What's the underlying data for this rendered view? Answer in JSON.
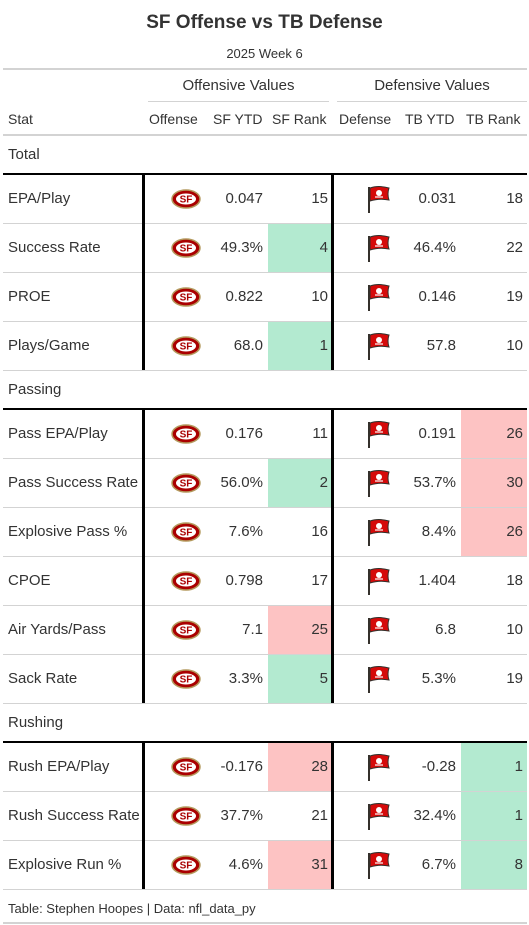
{
  "title": "SF Offense vs TB Defense",
  "subtitle": "2025 Week 6",
  "spanners": {
    "offensive": "Offensive Values",
    "defensive": "Defensive Values"
  },
  "columns": {
    "stat": "Stat",
    "offense": "Offense",
    "sf_ytd": "SF YTD",
    "sf_rank": "SF Rank",
    "defense": "Defense",
    "tb_ytd": "TB YTD",
    "tb_rank": "TB Rank"
  },
  "colors": {
    "good": "#b3ead0",
    "bad": "#fdc3c3",
    "niners_red": "#aa0000",
    "niners_gold": "#b3995d",
    "bucs_red": "#d50a0a",
    "bucs_pewter": "#34302b"
  },
  "groups": [
    {
      "label": "Total",
      "rows": [
        {
          "stat": "EPA/Play",
          "sf_ytd": "0.047",
          "sf_rank": "15",
          "sf_rank_tone": "none",
          "tb_ytd": "0.031",
          "tb_rank": "18",
          "tb_rank_tone": "none"
        },
        {
          "stat": "Success Rate",
          "sf_ytd": "49.3%",
          "sf_rank": "4",
          "sf_rank_tone": "good",
          "tb_ytd": "46.4%",
          "tb_rank": "22",
          "tb_rank_tone": "none"
        },
        {
          "stat": "PROE",
          "sf_ytd": "0.822",
          "sf_rank": "10",
          "sf_rank_tone": "none",
          "tb_ytd": "0.146",
          "tb_rank": "19",
          "tb_rank_tone": "none"
        },
        {
          "stat": "Plays/Game",
          "sf_ytd": "68.0",
          "sf_rank": "1",
          "sf_rank_tone": "good",
          "tb_ytd": "57.8",
          "tb_rank": "10",
          "tb_rank_tone": "none"
        }
      ]
    },
    {
      "label": "Passing",
      "rows": [
        {
          "stat": "Pass EPA/Play",
          "sf_ytd": "0.176",
          "sf_rank": "11",
          "sf_rank_tone": "none",
          "tb_ytd": "0.191",
          "tb_rank": "26",
          "tb_rank_tone": "bad"
        },
        {
          "stat": "Pass Success Rate",
          "sf_ytd": "56.0%",
          "sf_rank": "2",
          "sf_rank_tone": "good",
          "tb_ytd": "53.7%",
          "tb_rank": "30",
          "tb_rank_tone": "bad"
        },
        {
          "stat": "Explosive Pass %",
          "sf_ytd": "7.6%",
          "sf_rank": "16",
          "sf_rank_tone": "none",
          "tb_ytd": "8.4%",
          "tb_rank": "26",
          "tb_rank_tone": "bad"
        },
        {
          "stat": "CPOE",
          "sf_ytd": "0.798",
          "sf_rank": "17",
          "sf_rank_tone": "none",
          "tb_ytd": "1.404",
          "tb_rank": "18",
          "tb_rank_tone": "none"
        },
        {
          "stat": "Air Yards/Pass",
          "sf_ytd": "7.1",
          "sf_rank": "25",
          "sf_rank_tone": "bad",
          "tb_ytd": "6.8",
          "tb_rank": "10",
          "tb_rank_tone": "none"
        },
        {
          "stat": "Sack Rate",
          "sf_ytd": "3.3%",
          "sf_rank": "5",
          "sf_rank_tone": "good",
          "tb_ytd": "5.3%",
          "tb_rank": "19",
          "tb_rank_tone": "none"
        }
      ]
    },
    {
      "label": "Rushing",
      "rows": [
        {
          "stat": "Rush EPA/Play",
          "sf_ytd": "-0.176",
          "sf_rank": "28",
          "sf_rank_tone": "bad",
          "tb_ytd": "-0.28",
          "tb_rank": "1",
          "tb_rank_tone": "good"
        },
        {
          "stat": "Rush Success Rate",
          "sf_ytd": "37.7%",
          "sf_rank": "21",
          "sf_rank_tone": "none",
          "tb_ytd": "32.4%",
          "tb_rank": "1",
          "tb_rank_tone": "good"
        },
        {
          "stat": "Explosive Run %",
          "sf_ytd": "4.6%",
          "sf_rank": "31",
          "sf_rank_tone": "bad",
          "tb_ytd": "6.7%",
          "tb_rank": "8",
          "tb_rank_tone": "good"
        }
      ]
    }
  ],
  "offense_logo": "sf-49ers-logo-icon",
  "defense_logo": "tb-buccaneers-flag-logo-icon",
  "footer": "Table: Stephen Hoopes | Data: nfl_data_py"
}
